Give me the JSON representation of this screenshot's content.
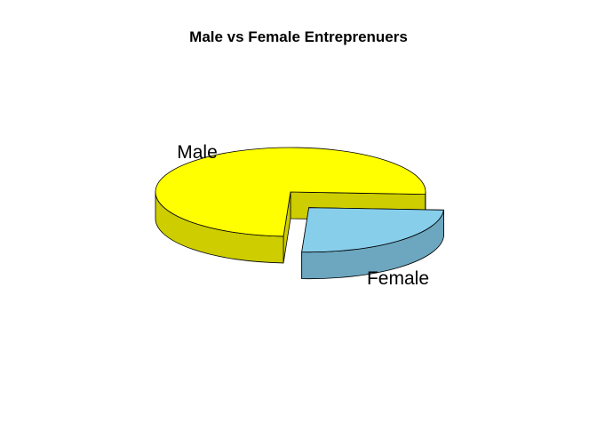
{
  "chart_data": {
    "type": "pie",
    "style": "3d-exploded",
    "title": "Male vs Female Entreprenuers",
    "categories": [
      "Male",
      "Female"
    ],
    "values": [
      75,
      25
    ],
    "colors": [
      "#FFFF00",
      "#87CEEB"
    ],
    "side_colors": [
      "#CDCD00",
      "#6CA6BF"
    ],
    "exploded": [
      "Female"
    ],
    "legend": "none"
  }
}
